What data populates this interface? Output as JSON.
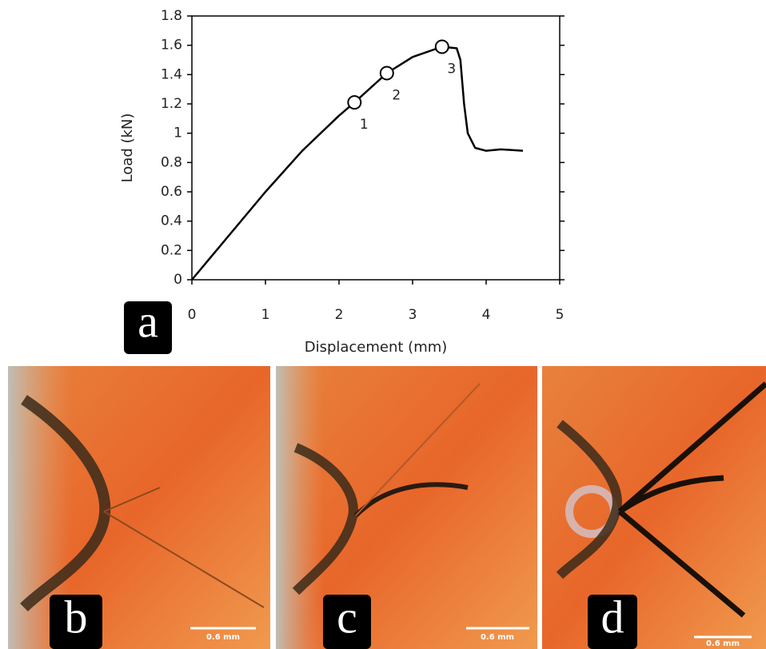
{
  "chart_data": {
    "type": "line",
    "xlabel": "Displacement (mm)",
    "ylabel": "Load (kN)",
    "xlim": [
      0,
      5
    ],
    "ylim": [
      0,
      1.8
    ],
    "xticks": [
      0,
      1,
      2,
      3,
      4,
      5
    ],
    "yticks": [
      0,
      0.2,
      0.4,
      0.6,
      0.8,
      1,
      1.2,
      1.4,
      1.6,
      1.8
    ],
    "series": [
      {
        "color": "#000000",
        "x": [
          0,
          0.5,
          1,
          1.5,
          2,
          2.21,
          2.65,
          3,
          3.4,
          3.6,
          3.65,
          3.7,
          3.75,
          3.85,
          4,
          4.2,
          4.5
        ],
        "values": [
          0,
          0.3,
          0.6,
          0.88,
          1.12,
          1.21,
          1.41,
          1.52,
          1.59,
          1.58,
          1.5,
          1.2,
          1.0,
          0.9,
          0.88,
          0.89,
          0.88
        ]
      },
      {
        "color": "#000000",
        "marker": "circle",
        "x": [
          2.21,
          2.65,
          3.4
        ],
        "values": [
          1.21,
          1.41,
          1.59
        ],
        "point_labels": [
          "1",
          "2",
          "3"
        ]
      }
    ]
  },
  "figure": {
    "panel_labels": [
      "a",
      "b",
      "c",
      "d"
    ],
    "scale_bar_labels": [
      "0.6 mm",
      "0.6 mm",
      "0.6 mm"
    ]
  }
}
